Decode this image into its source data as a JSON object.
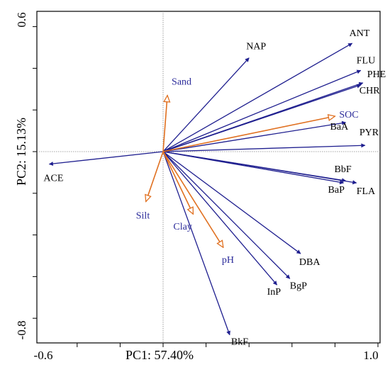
{
  "chart_data": {
    "type": "scatter",
    "subtype": "pca-biplot",
    "xlabel": "PC1: 57.40%",
    "ylabel": "PC2: 15.13%",
    "xlim": [
      -0.65,
      1.0
    ],
    "ylim": [
      -0.85,
      0.63
    ],
    "x_tick_labels": [
      "-0.6",
      "1.0"
    ],
    "y_tick_labels": [
      "0.6",
      "-0.8"
    ],
    "grid": false,
    "reference_lines": "dotted lines at x=0 and y=0",
    "colors": {
      "pah_vectors": "#1f1f8f",
      "soil_vectors": "#e07020",
      "soil_labels": "#2b2b9a",
      "pah_labels": "#000000"
    },
    "series": [
      {
        "group": "pah",
        "arrowhead": "filled",
        "vectors": [
          {
            "label": "NAP",
            "x": 0.4,
            "y": 0.45
          },
          {
            "label": "ANT",
            "x": 0.88,
            "y": 0.52
          },
          {
            "label": "FLU",
            "x": 0.92,
            "y": 0.39
          },
          {
            "label": "PHE",
            "x": 0.93,
            "y": 0.33
          },
          {
            "label": "CHR",
            "x": 0.92,
            "y": 0.32
          },
          {
            "label": "BaA",
            "x": 0.85,
            "y": 0.14
          },
          {
            "label": "PYR",
            "x": 0.94,
            "y": 0.03
          },
          {
            "label": "BbF",
            "x": 0.85,
            "y": -0.14
          },
          {
            "label": "BaP",
            "x": 0.84,
            "y": -0.15
          },
          {
            "label": "FLA",
            "x": 0.9,
            "y": -0.15
          },
          {
            "label": "DBA",
            "x": 0.64,
            "y": -0.49
          },
          {
            "label": "BgP",
            "x": 0.59,
            "y": -0.61
          },
          {
            "label": "InP",
            "x": 0.53,
            "y": -0.64
          },
          {
            "label": "BkF",
            "x": 0.31,
            "y": -0.88
          },
          {
            "label": "ACE",
            "x": -0.53,
            "y": -0.06
          }
        ]
      },
      {
        "group": "soil",
        "arrowhead": "open",
        "vectors": [
          {
            "label": "Sand",
            "x": 0.02,
            "y": 0.27
          },
          {
            "label": "SOC",
            "x": 0.8,
            "y": 0.17
          },
          {
            "label": "Silt",
            "x": -0.08,
            "y": -0.24
          },
          {
            "label": "Clay",
            "x": 0.14,
            "y": -0.3
          },
          {
            "label": "pH",
            "x": 0.28,
            "y": -0.46
          }
        ]
      }
    ]
  }
}
